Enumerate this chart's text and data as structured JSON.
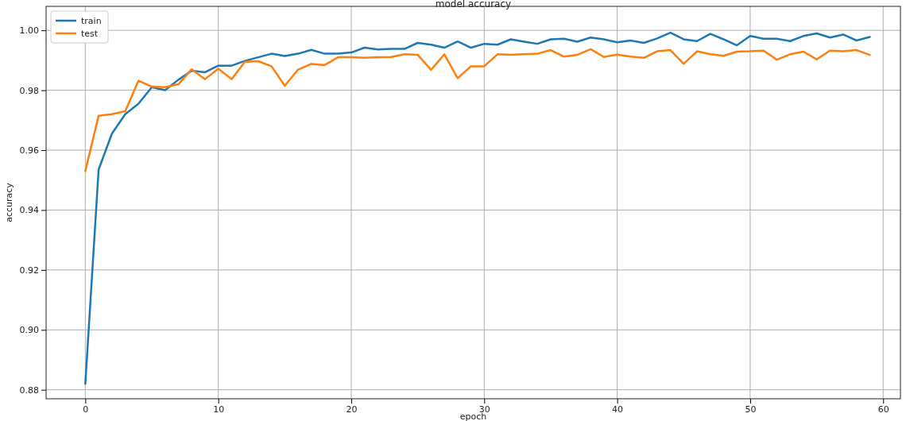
{
  "chart_data": {
    "type": "line",
    "title": "model accuracy",
    "xlabel": "epoch",
    "ylabel": "accuracy",
    "x": [
      0,
      1,
      2,
      3,
      4,
      5,
      6,
      7,
      8,
      9,
      10,
      11,
      12,
      13,
      14,
      15,
      16,
      17,
      18,
      19,
      20,
      21,
      22,
      23,
      24,
      25,
      26,
      27,
      28,
      29,
      30,
      31,
      32,
      33,
      34,
      35,
      36,
      37,
      38,
      39,
      40,
      41,
      42,
      43,
      44,
      45,
      46,
      47,
      48,
      49,
      50,
      51,
      52,
      53,
      54,
      55,
      56,
      57,
      58,
      59
    ],
    "series": [
      {
        "name": "train",
        "color": "#1f77b4",
        "values": [
          0.882,
          0.9535,
          0.9655,
          0.972,
          0.9755,
          0.981,
          0.98,
          0.9835,
          0.9865,
          0.986,
          0.9882,
          0.9882,
          0.9898,
          0.991,
          0.9922,
          0.9914,
          0.9922,
          0.9935,
          0.9922,
          0.9922,
          0.9926,
          0.9942,
          0.9936,
          0.9938,
          0.9938,
          0.9958,
          0.9952,
          0.9942,
          0.9963,
          0.9942,
          0.9955,
          0.9952,
          0.997,
          0.9962,
          0.9955,
          0.997,
          0.9972,
          0.9962,
          0.9976,
          0.997,
          0.996,
          0.9966,
          0.9958,
          0.9973,
          0.9992,
          0.997,
          0.9964,
          0.9988,
          0.997,
          0.995,
          0.9981,
          0.9972,
          0.9972,
          0.9964,
          0.9981,
          0.999,
          0.9976,
          0.9986,
          0.9966,
          0.9978
        ]
      },
      {
        "name": "test",
        "color": "#ff7f0e",
        "values": [
          0.953,
          0.9715,
          0.972,
          0.973,
          0.9832,
          0.9812,
          0.981,
          0.982,
          0.987,
          0.9837,
          0.9872,
          0.9837,
          0.9895,
          0.9897,
          0.988,
          0.9815,
          0.9869,
          0.9888,
          0.9884,
          0.991,
          0.991,
          0.9908,
          0.991,
          0.9911,
          0.992,
          0.9918,
          0.9868,
          0.992,
          0.984,
          0.988,
          0.988,
          0.992,
          0.9918,
          0.992,
          0.9922,
          0.9934,
          0.9912,
          0.9918,
          0.9937,
          0.9911,
          0.9919,
          0.9912,
          0.9908,
          0.993,
          0.9934,
          0.9888,
          0.993,
          0.992,
          0.9915,
          0.9929,
          0.993,
          0.9932,
          0.9902,
          0.992,
          0.9929,
          0.9903,
          0.9932,
          0.993,
          0.9934,
          0.9918
        ]
      }
    ],
    "xlim": [
      -2.95,
      61.3
    ],
    "xticks": [
      0,
      10,
      20,
      30,
      40,
      50,
      60
    ],
    "ylim": [
      0.877,
      1.008
    ],
    "yticks": [
      {
        "value": 0.88,
        "label": "0.88"
      },
      {
        "value": 0.9,
        "label": "0.90"
      },
      {
        "value": 0.92,
        "label": "0.92"
      },
      {
        "value": 0.94,
        "label": "0.94"
      },
      {
        "value": 0.96,
        "label": "0.96"
      },
      {
        "value": 0.98,
        "label": "0.98"
      },
      {
        "value": 1,
        "label": "1.00"
      }
    ],
    "grid": true,
    "legend": "top left",
    "marker": "none",
    "line_style": "solid"
  }
}
